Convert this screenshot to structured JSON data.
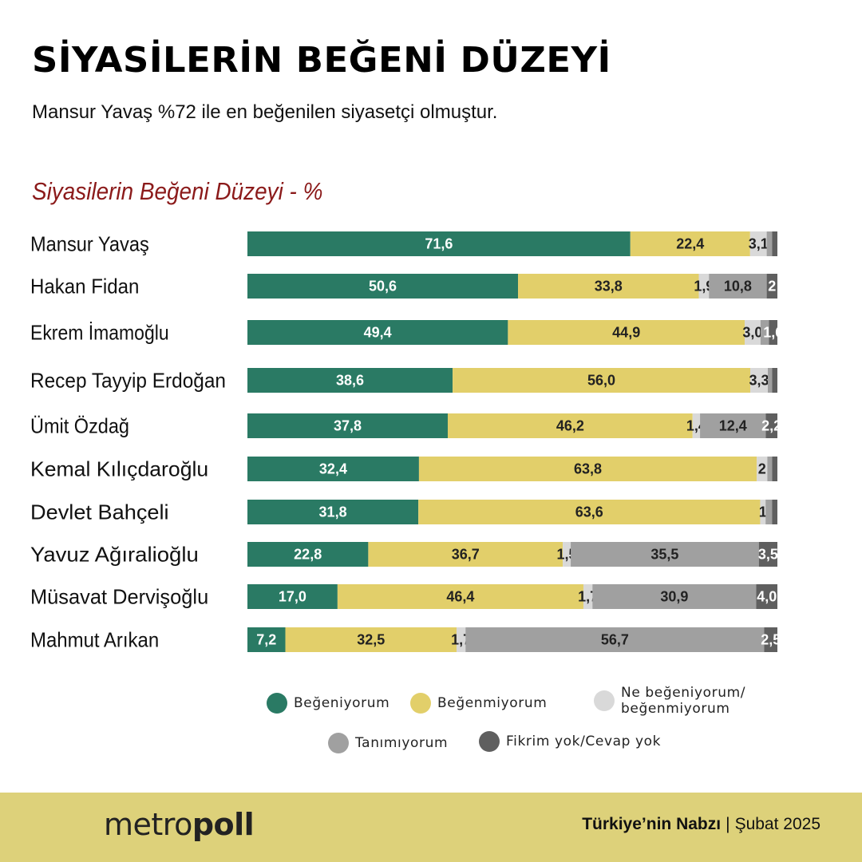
{
  "header": {
    "title": "SİYASİLERİN BEĞENİ DÜZEYİ",
    "subtitle": "Mansur Yavaş %72  ile en beğenilen siyasetçi olmuştur."
  },
  "chart_data": {
    "type": "bar",
    "orientation": "horizontal",
    "stacked": true,
    "title": "Siyasilerin Beğeni Düzeyi - %",
    "xlabel": "",
    "ylabel": "",
    "xlim": [
      0,
      100
    ],
    "grid": false,
    "legend_position": "bottom",
    "categories": [
      "Mansur Yavaş",
      "Hakan Fidan",
      "Ekrem İmamoğlu",
      "Recep Tayyip Erdoğan",
      "Ümit Özdağ",
      "Kemal Kılıçdaroğlu",
      "Devlet Bahçeli",
      "Yavuz Ağıralioğlu",
      "Müsavat Dervişoğlu",
      "Mahmut Arıkan"
    ],
    "series": [
      {
        "name": "Beğeniyorum",
        "color": "#2a7a64",
        "values": [
          71.6,
          50.6,
          49.4,
          38.6,
          37.8,
          32.4,
          31.8,
          22.8,
          17.0,
          7.2
        ],
        "labels": [
          "71,6",
          "50,6",
          "49,4",
          "38,6",
          "37,8",
          "32,4",
          "31,8",
          "22,8",
          "17,0",
          "7,2"
        ]
      },
      {
        "name": "Beğenmiyorum",
        "color": "#e2cf6a",
        "values": [
          22.4,
          33.8,
          44.9,
          56.0,
          46.2,
          63.8,
          63.6,
          36.7,
          46.4,
          32.5
        ],
        "labels": [
          "22,4",
          "33,8",
          "44,9",
          "56,0",
          "46,2",
          "63,8",
          "63,6",
          "36,7",
          "46,4",
          "32,5"
        ]
      },
      {
        "name": "Ne beğeniyorum/ beğenmiyorum",
        "color": "#d9d9d9",
        "values": [
          3.1,
          1.9,
          3.0,
          3.3,
          1.4,
          2,
          1,
          1.5,
          1.7,
          1.7
        ],
        "labels": [
          "3,1",
          "1,9",
          "3,0",
          "3,3",
          "1,4",
          "2",
          "1",
          "1,5",
          "1,7",
          "1,7"
        ]
      },
      {
        "name": "Tanımıyorum",
        "color": "#a0a0a0",
        "values": [
          1.0,
          10.8,
          1.6,
          0.8,
          12.4,
          0.9,
          1.2,
          35.5,
          30.9,
          56.7
        ],
        "labels": [
          "",
          "10,8",
          "",
          "",
          "12,4",
          "",
          "",
          "35,5",
          "30,9",
          "56,7"
        ]
      },
      {
        "name": "Fikrim yok/Cevap yok",
        "color": "#5f5f5f",
        "values": [
          1.0,
          2,
          1.6,
          1.0,
          2.2,
          1.0,
          1.0,
          3.5,
          4.0,
          2.5
        ],
        "labels": [
          "",
          "2",
          "1,6",
          "",
          "2,2",
          "",
          "",
          "3,5",
          "4,0",
          "2,5"
        ]
      }
    ]
  },
  "legend": {
    "items": [
      {
        "label": "Beğeniyorum",
        "color": "#2a7a64"
      },
      {
        "label": "Beğenmiyorum",
        "color": "#e2cf6a"
      },
      {
        "label": "Ne beğeniyorum/ beğenmiyorum",
        "color": "#d9d9d9"
      },
      {
        "label": "Tanımıyorum",
        "color": "#a0a0a0"
      },
      {
        "label": "Fikrim yok/Cevap yok",
        "color": "#5f5f5f"
      }
    ]
  },
  "footer": {
    "logo_light": "metro",
    "logo_bold": "poll",
    "source": "Türkiye’nin Nabzı",
    "separator": "|",
    "date": "Şubat 2025"
  }
}
